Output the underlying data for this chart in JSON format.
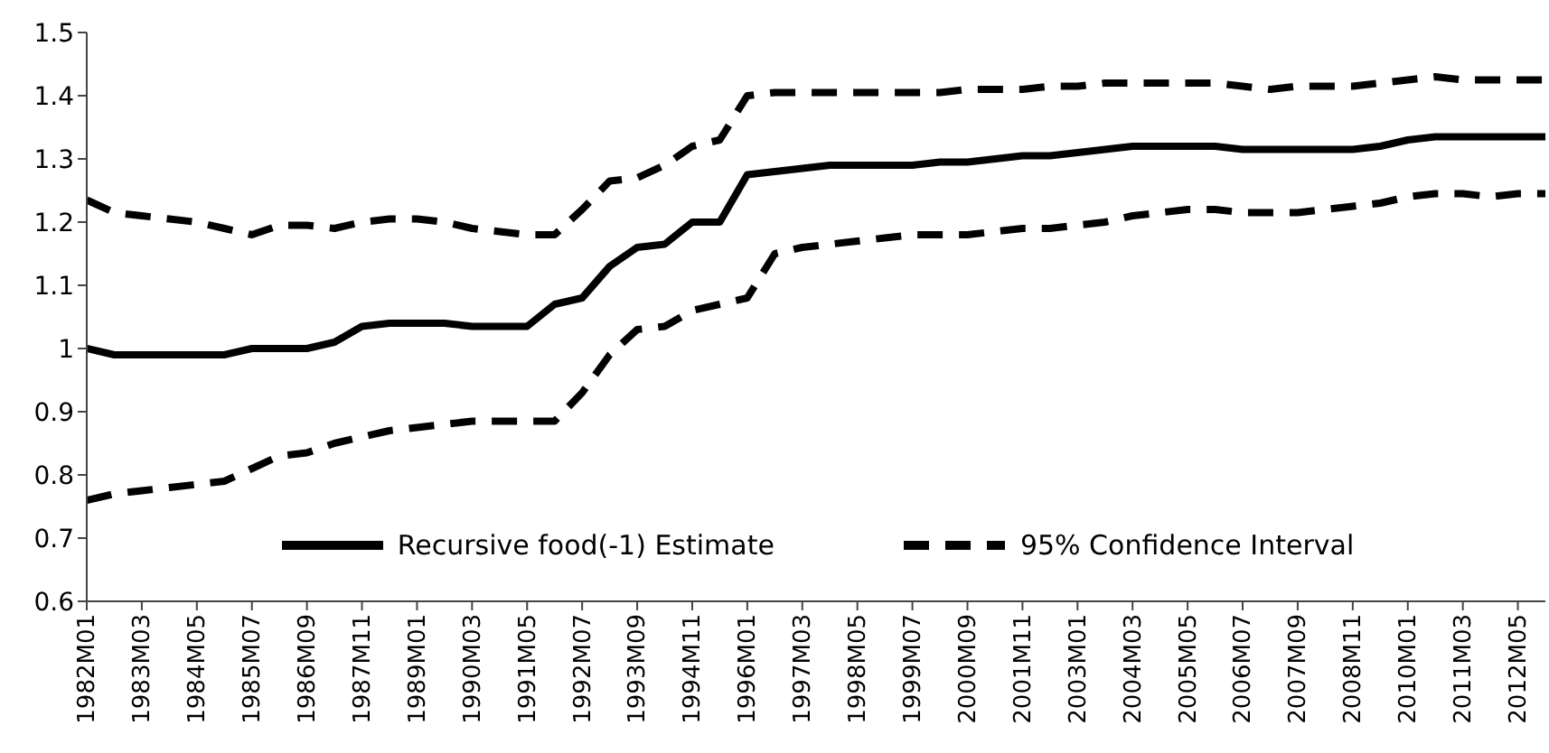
{
  "chart_data": {
    "type": "line",
    "categories": [
      "1982M01",
      null,
      "1983M03",
      null,
      "1984M05",
      null,
      "1985M07",
      null,
      "1986M09",
      null,
      "1987M11",
      null,
      "1989M01",
      null,
      "1990M03",
      null,
      "1991M05",
      null,
      "1992M07",
      null,
      "1993M09",
      null,
      "1994M11",
      null,
      "1996M01",
      null,
      "1997M03",
      null,
      "1998M05",
      null,
      "1999M07",
      null,
      "2000M09",
      null,
      "2001M11",
      null,
      "2003M01",
      null,
      "2004M03",
      null,
      "2005M05",
      null,
      "2006M07",
      null,
      "2007M09",
      null,
      "2008M11",
      null,
      "2010M01",
      null,
      "2011M03",
      null,
      "2012M05",
      null
    ],
    "ylim": [
      0.6,
      1.5
    ],
    "yticks": [
      0.6,
      0.7,
      0.8,
      0.9,
      1,
      1.1,
      1.2,
      1.3,
      1.4,
      1.5
    ],
    "grid": false,
    "legend": "bottom",
    "marker": "none",
    "series": [
      {
        "name": "Recursive food(-1) Estimate",
        "color": "#000000",
        "line_style": "solid",
        "values": [
          1.0,
          0.99,
          0.99,
          0.99,
          0.99,
          0.99,
          1.0,
          1.0,
          1.0,
          1.01,
          1.035,
          1.04,
          1.04,
          1.04,
          1.035,
          1.035,
          1.035,
          1.07,
          1.08,
          1.13,
          1.16,
          1.165,
          1.2,
          1.2,
          1.275,
          1.28,
          1.285,
          1.29,
          1.29,
          1.29,
          1.29,
          1.295,
          1.295,
          1.3,
          1.305,
          1.305,
          1.31,
          1.315,
          1.32,
          1.32,
          1.32,
          1.32,
          1.315,
          1.315,
          1.315,
          1.315,
          1.315,
          1.32,
          1.33,
          1.335,
          1.335,
          1.335,
          1.335,
          1.335
        ]
      },
      {
        "name": "95% Confidence Interval",
        "color": "#000000",
        "line_style": "dashed",
        "values": [
          1.235,
          1.215,
          1.21,
          1.205,
          1.2,
          1.19,
          1.18,
          1.195,
          1.195,
          1.19,
          1.2,
          1.205,
          1.205,
          1.2,
          1.19,
          1.185,
          1.18,
          1.18,
          1.22,
          1.265,
          1.27,
          1.29,
          1.32,
          1.33,
          1.4,
          1.405,
          1.405,
          1.405,
          1.405,
          1.405,
          1.405,
          1.405,
          1.41,
          1.41,
          1.41,
          1.415,
          1.415,
          1.42,
          1.42,
          1.42,
          1.42,
          1.42,
          1.415,
          1.41,
          1.415,
          1.415,
          1.415,
          1.42,
          1.425,
          1.43,
          1.425,
          1.425,
          1.425,
          1.425
        ]
      },
      {
        "color": "#000000",
        "line_style": "dashed",
        "values": [
          0.76,
          0.77,
          0.775,
          0.78,
          0.785,
          0.79,
          0.81,
          0.83,
          0.835,
          0.85,
          0.86,
          0.87,
          0.875,
          0.88,
          0.885,
          0.885,
          0.885,
          0.885,
          0.93,
          0.99,
          1.03,
          1.035,
          1.06,
          1.07,
          1.08,
          1.15,
          1.16,
          1.165,
          1.17,
          1.175,
          1.18,
          1.18,
          1.18,
          1.185,
          1.19,
          1.19,
          1.195,
          1.2,
          1.21,
          1.215,
          1.22,
          1.22,
          1.215,
          1.215,
          1.215,
          1.22,
          1.225,
          1.23,
          1.24,
          1.245,
          1.245,
          1.24,
          1.245,
          1.245
        ]
      }
    ]
  }
}
